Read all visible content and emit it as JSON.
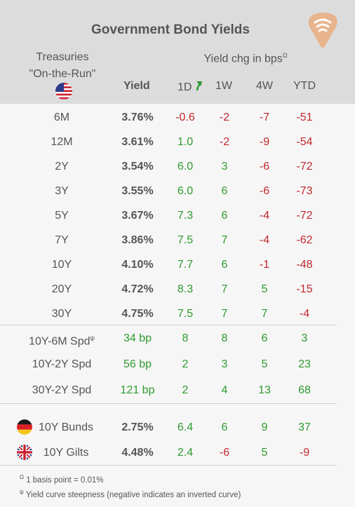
{
  "title": "Government Bond Yields",
  "treasuries_label_line1": "Treasuries",
  "treasuries_label_line2": "\"On-the-Run\"",
  "yield_chg_label": "Yield chg in bps",
  "yield_chg_sup": "Ω",
  "columns": {
    "yield": "Yield",
    "d1": "1D",
    "w1": "1W",
    "w4": "4W",
    "ytd": "YTD"
  },
  "treasuries": [
    {
      "label": "6M",
      "yield": "3.76%",
      "d1": "-0.6",
      "w1": "-2",
      "w4": "-7",
      "ytd": "-51"
    },
    {
      "label": "12M",
      "yield": "3.61%",
      "d1": "1.0",
      "w1": "-2",
      "w4": "-9",
      "ytd": "-54"
    },
    {
      "label": "2Y",
      "yield": "3.54%",
      "d1": "6.0",
      "w1": "3",
      "w4": "-6",
      "ytd": "-72"
    },
    {
      "label": "3Y",
      "yield": "3.55%",
      "d1": "6.0",
      "w1": "6",
      "w4": "-6",
      "ytd": "-73"
    },
    {
      "label": "5Y",
      "yield": "3.67%",
      "d1": "7.3",
      "w1": "6",
      "w4": "-4",
      "ytd": "-72"
    },
    {
      "label": "7Y",
      "yield": "3.86%",
      "d1": "7.5",
      "w1": "7",
      "w4": "-4",
      "ytd": "-62"
    },
    {
      "label": "10Y",
      "yield": "4.10%",
      "d1": "7.7",
      "w1": "6",
      "w4": "-1",
      "ytd": "-48"
    },
    {
      "label": "20Y",
      "yield": "4.72%",
      "d1": "8.3",
      "w1": "7",
      "w4": "5",
      "ytd": "-15"
    },
    {
      "label": "30Y",
      "yield": "4.75%",
      "d1": "7.5",
      "w1": "7",
      "w4": "7",
      "ytd": "-4"
    }
  ],
  "spreads": [
    {
      "label": "10Y-6M Spd",
      "sup": "ψ",
      "yield": "34 bp",
      "d1": "8",
      "w1": "8",
      "w4": "6",
      "ytd": "3"
    },
    {
      "label": "10Y-2Y Spd",
      "sup": "",
      "yield": "56 bp",
      "d1": "2",
      "w1": "3",
      "w4": "5",
      "ytd": "23"
    },
    {
      "label": "30Y-2Y Spd",
      "sup": "",
      "yield": "121 bp",
      "d1": "2",
      "w1": "4",
      "w4": "13",
      "ytd": "68"
    }
  ],
  "others": [
    {
      "label": "10Y Bunds",
      "flag": "germany-flag-icon",
      "yield": "2.75%",
      "d1": "6.4",
      "w1": "6",
      "w4": "9",
      "ytd": "37"
    },
    {
      "label": "10Y Gilts",
      "flag": "uk-flag-icon",
      "yield": "4.48%",
      "d1": "2.4",
      "w1": "-6",
      "w4": "5",
      "ytd": "-9"
    }
  ],
  "footnotes": [
    {
      "sup": "Ω",
      "text": "1 basis point = 0.01%"
    },
    {
      "sup": "ψ",
      "text": "Yield curve steepness (negative indicates an inverted curve)"
    }
  ],
  "colors": {
    "positive": "#2f9a2f",
    "negative": "#c0282e",
    "header_bg": "#dcdcdc",
    "body_bg": "#f6f6f6",
    "logo": "#e8b48c"
  },
  "icons": [
    "logo-icon",
    "us-flag-icon",
    "trend-arrow-icon",
    "germany-flag-icon",
    "uk-flag-icon"
  ]
}
